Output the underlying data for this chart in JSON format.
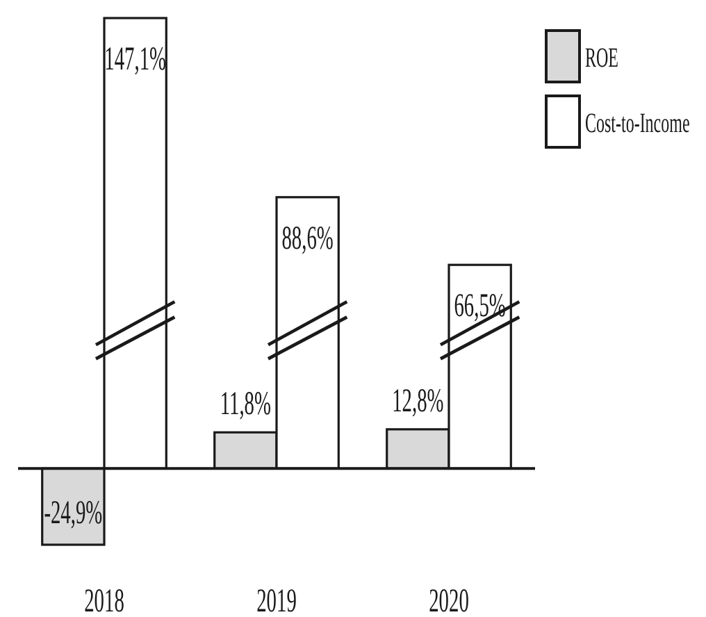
{
  "chart_data": {
    "type": "bar",
    "categories": [
      "2018",
      "2019",
      "2020"
    ],
    "series": [
      {
        "name": "ROE",
        "color": "#d9d9d9",
        "values": [
          -24.9,
          11.8,
          12.8
        ],
        "value_labels": [
          "-24,9%",
          "11,8%",
          "12,8%"
        ]
      },
      {
        "name": "Cost-to-Income",
        "color": "#ffffff",
        "values": [
          147.1,
          88.6,
          66.5
        ],
        "value_labels": [
          "147,1%",
          "88,6%",
          "66,5%"
        ]
      }
    ],
    "legend": "top right",
    "tick_labels": "x"
  }
}
